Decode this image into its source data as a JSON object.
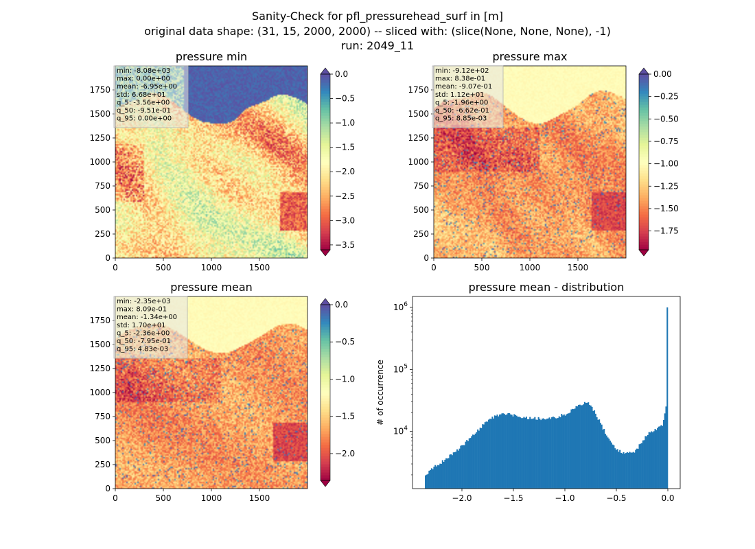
{
  "suptitle": [
    "Sanity-Check for pfl_pressurehead_surf in [m]",
    "original data shape: (31, 15, 2000, 2000) -- sliced with: (slice(None, None, None), -1)",
    "run: 2049_11"
  ],
  "colors": {
    "spectral": [
      "#9e0142",
      "#d53e4f",
      "#f46d43",
      "#fdae61",
      "#fee08b",
      "#ffffbf",
      "#e6f598",
      "#abdda4",
      "#66c2a5",
      "#3288bd",
      "#5e4fa2"
    ],
    "hist_bar": "#1f77b4",
    "stats_box": "#e6e6e6"
  },
  "chart_data": [
    {
      "type": "heatmap",
      "title": "pressure min",
      "xlim": [
        0,
        2000
      ],
      "ylim": [
        0,
        2000
      ],
      "xticks": [
        "0",
        "500",
        "1000",
        "1500"
      ],
      "yticks": [
        "0",
        "250",
        "500",
        "750",
        "1000",
        "1250",
        "1500",
        "1750"
      ],
      "colorbar": {
        "range": [
          -3.6,
          0.0
        ],
        "ticks": [
          "0.0",
          "−0.5",
          "−1.0",
          "−1.5",
          "−2.0",
          "−2.5",
          "−3.0",
          "−3.5"
        ],
        "tick_values": [
          0.0,
          -0.5,
          -1.0,
          -1.5,
          -2.0,
          -2.5,
          -3.0,
          -3.5
        ],
        "extend": "both"
      },
      "stats": [
        "min: -8.08e+03",
        "max: 0.00e+00",
        "mean: -6.95e+00",
        "std: 6.68e+01",
        "q_5: -3.56e+00",
        "q_50: -9.51e-01",
        "q_95: 0.00e+00"
      ]
    },
    {
      "type": "heatmap",
      "title": "pressure max",
      "xlim": [
        0,
        2000
      ],
      "ylim": [
        0,
        2000
      ],
      "xticks": [
        "0",
        "500",
        "1000",
        "1500"
      ],
      "yticks": [
        "0",
        "250",
        "500",
        "750",
        "1000",
        "1250",
        "1500",
        "1750"
      ],
      "colorbar": {
        "range": [
          -1.96,
          0.0
        ],
        "ticks": [
          "0.00",
          "−0.25",
          "−0.50",
          "−0.75",
          "−1.00",
          "−1.25",
          "−1.50",
          "−1.75"
        ],
        "tick_values": [
          0.0,
          -0.25,
          -0.5,
          -0.75,
          -1.0,
          -1.25,
          -1.5,
          -1.75
        ],
        "extend": "both"
      },
      "stats": [
        "min: -9.12e+02",
        "max: 8.38e-01",
        "mean: -9.07e-01",
        "std: 1.12e+01",
        "q_5: -1.96e+00",
        "q_50: -6.62e-01",
        "q_95: 8.85e-03"
      ]
    },
    {
      "type": "heatmap",
      "title": "pressure mean",
      "xlim": [
        0,
        2000
      ],
      "ylim": [
        0,
        2000
      ],
      "xticks": [
        "0",
        "500",
        "1000",
        "1500"
      ],
      "yticks": [
        "0",
        "250",
        "500",
        "750",
        "1000",
        "1250",
        "1500",
        "1750"
      ],
      "colorbar": {
        "range": [
          -2.36,
          0.0
        ],
        "ticks": [
          "0.0",
          "−0.5",
          "−1.0",
          "−1.5",
          "−2.0"
        ],
        "tick_values": [
          0.0,
          -0.5,
          -1.0,
          -1.5,
          -2.0
        ],
        "extend": "both"
      },
      "stats": [
        "min: -2.35e+03",
        "max: 8.09e-01",
        "mean: -1.34e+00",
        "std: 1.70e+01",
        "q_5: -2.36e+00",
        "q_50: -7.95e-01",
        "q_95: 4.83e-03"
      ]
    },
    {
      "type": "bar",
      "title": "pressure mean - distribution",
      "ylabel": "# of occurrence",
      "yscale": "log",
      "xlim": [
        -2.48,
        0.12
      ],
      "ylim": [
        1200,
        1500000
      ],
      "xticks": [
        "−2.0",
        "−1.5",
        "−1.0",
        "−0.5",
        "0.0"
      ],
      "xtick_values": [
        -2.0,
        -1.5,
        -1.0,
        -0.5,
        0.0
      ],
      "yticks": [
        "10^4",
        "10^5",
        "10^6"
      ],
      "ytick_values": [
        10000,
        100000,
        1000000
      ],
      "bin_range": [
        -2.36,
        0.0
      ],
      "profile": [
        [
          -2.36,
          1800
        ],
        [
          -2.3,
          2500
        ],
        [
          -2.2,
          3200
        ],
        [
          -2.1,
          4300
        ],
        [
          -2.0,
          5800
        ],
        [
          -1.9,
          8500
        ],
        [
          -1.8,
          12500
        ],
        [
          -1.7,
          17000
        ],
        [
          -1.6,
          19500
        ],
        [
          -1.5,
          18500
        ],
        [
          -1.4,
          17000
        ],
        [
          -1.3,
          16500
        ],
        [
          -1.2,
          16000
        ],
        [
          -1.1,
          16500
        ],
        [
          -1.0,
          19000
        ],
        [
          -0.9,
          24000
        ],
        [
          -0.8,
          30000
        ],
        [
          -0.75,
          27000
        ],
        [
          -0.7,
          19000
        ],
        [
          -0.6,
          9000
        ],
        [
          -0.5,
          5000
        ],
        [
          -0.4,
          4400
        ],
        [
          -0.35,
          4500
        ],
        [
          -0.3,
          5200
        ],
        [
          -0.2,
          9000
        ],
        [
          -0.1,
          11000
        ],
        [
          -0.05,
          13000
        ],
        [
          -0.01,
          28000
        ],
        [
          0.0,
          1000000
        ]
      ]
    }
  ]
}
